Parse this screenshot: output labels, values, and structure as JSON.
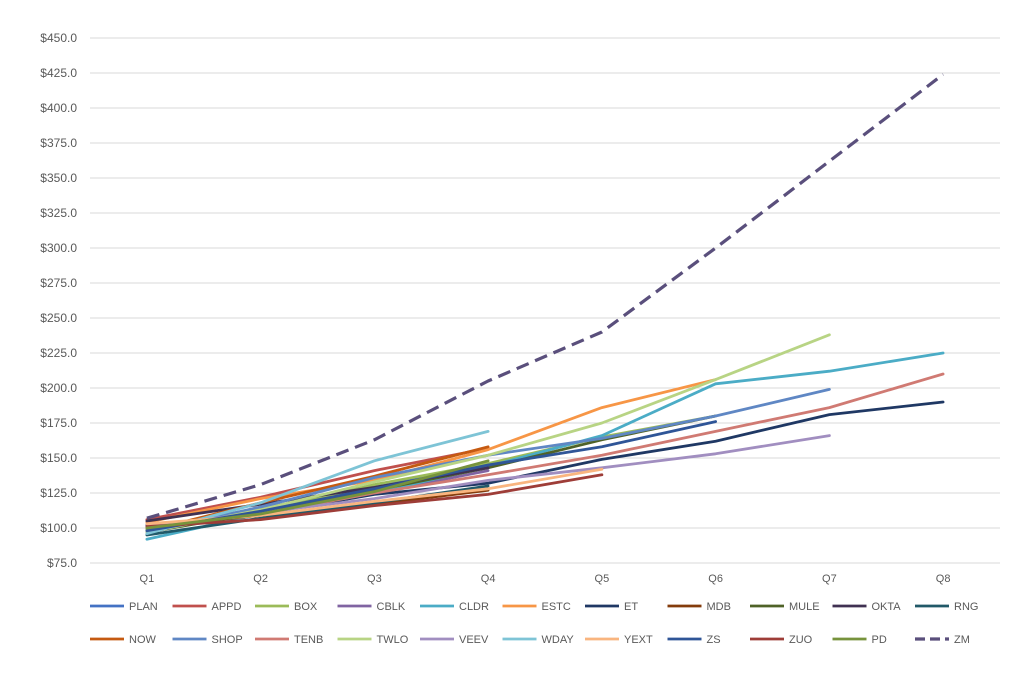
{
  "chart_data": {
    "type": "line",
    "title": "",
    "xlabel": "",
    "ylabel": "",
    "categories": [
      "Q1",
      "Q2",
      "Q3",
      "Q4",
      "Q5",
      "Q6",
      "Q7",
      "Q8"
    ],
    "ylim": [
      75,
      450
    ],
    "y_ticks": [
      "$75.0",
      "$100.0",
      "$125.0",
      "$150.0",
      "$175.0",
      "$200.0",
      "$225.0",
      "$250.0",
      "$275.0",
      "$300.0",
      "$325.0",
      "$350.0",
      "$375.0",
      "$400.0",
      "$425.0",
      "$450.0"
    ],
    "grid": true,
    "legend_position": "bottom",
    "series": [
      {
        "name": "PLAN",
        "color": "#4472c4",
        "values": [
          100,
          114,
          129,
          146,
          null,
          null,
          null,
          null
        ]
      },
      {
        "name": "APPD",
        "color": "#c0504d",
        "values": [
          106,
          122,
          141,
          157,
          null,
          null,
          null,
          null
        ]
      },
      {
        "name": "BOX",
        "color": "#9bbb59",
        "values": [
          99,
          112,
          131,
          146,
          165,
          180,
          null,
          null
        ]
      },
      {
        "name": "CBLK",
        "color": "#8064a2",
        "values": [
          98,
          113,
          125,
          141,
          null,
          null,
          null,
          null
        ]
      },
      {
        "name": "CLDR",
        "color": "#4bacc6",
        "values": [
          92,
          110,
          125,
          144,
          166,
          203,
          212,
          225
        ]
      },
      {
        "name": "ESTC",
        "color": "#f79646",
        "values": [
          104,
          121,
          134,
          156,
          186,
          206,
          null,
          null
        ]
      },
      {
        "name": "ET",
        "color": "#1f3864",
        "values": [
          102,
          110,
          124,
          132,
          149,
          162,
          181,
          190
        ]
      },
      {
        "name": "MDB",
        "color": "#843c0c",
        "values": [
          101,
          109,
          117,
          127,
          null,
          null,
          null,
          null
        ]
      },
      {
        "name": "MULE",
        "color": "#4f6228",
        "values": [
          97,
          111,
          127,
          143,
          163,
          180,
          null,
          null
        ]
      },
      {
        "name": "OKTA",
        "color": "#403152",
        "values": [
          105,
          117,
          129,
          143,
          null,
          null,
          null,
          null
        ]
      },
      {
        "name": "RNG",
        "color": "#215968",
        "values": [
          95,
          107,
          118,
          130,
          null,
          null,
          null,
          null
        ]
      },
      {
        "name": "NOW",
        "color": "#c55a11",
        "values": [
          98,
          118,
          137,
          158,
          null,
          null,
          null,
          null
        ]
      },
      {
        "name": "SHOP",
        "color": "#5f87c4",
        "values": [
          97,
          115,
          136,
          152,
          164,
          180,
          199,
          null
        ]
      },
      {
        "name": "TENB",
        "color": "#d07a73",
        "values": [
          101,
          110,
          125,
          138,
          152,
          169,
          186,
          210
        ]
      },
      {
        "name": "TWLO",
        "color": "#b8d484",
        "values": [
          97,
          113,
          133,
          152,
          175,
          206,
          238,
          null
        ]
      },
      {
        "name": "VEEV",
        "color": "#a18ec0",
        "values": [
          101,
          111,
          121,
          134,
          143,
          153,
          166,
          null
        ]
      },
      {
        "name": "WDAY",
        "color": "#7ec4d6",
        "values": [
          96,
          118,
          148,
          169,
          null,
          null,
          null,
          null
        ]
      },
      {
        "name": "YEXT",
        "color": "#f9b57f",
        "values": [
          103,
          109,
          119,
          128,
          142,
          null,
          null,
          null
        ]
      },
      {
        "name": "ZS",
        "color": "#2f5597",
        "values": [
          98,
          112,
          128,
          145,
          158,
          176,
          null,
          null
        ]
      },
      {
        "name": "ZUO",
        "color": "#9e3d38",
        "values": [
          101,
          106,
          116,
          124,
          138,
          null,
          null,
          null
        ]
      },
      {
        "name": "PD",
        "color": "#77933c",
        "values": [
          100,
          110,
          126,
          148,
          null,
          null,
          null,
          null
        ]
      },
      {
        "name": "ZM",
        "color": "#5a4f7c",
        "dashed": true,
        "values": [
          107,
          131,
          163,
          205,
          240,
          300,
          362,
          424
        ]
      }
    ]
  }
}
